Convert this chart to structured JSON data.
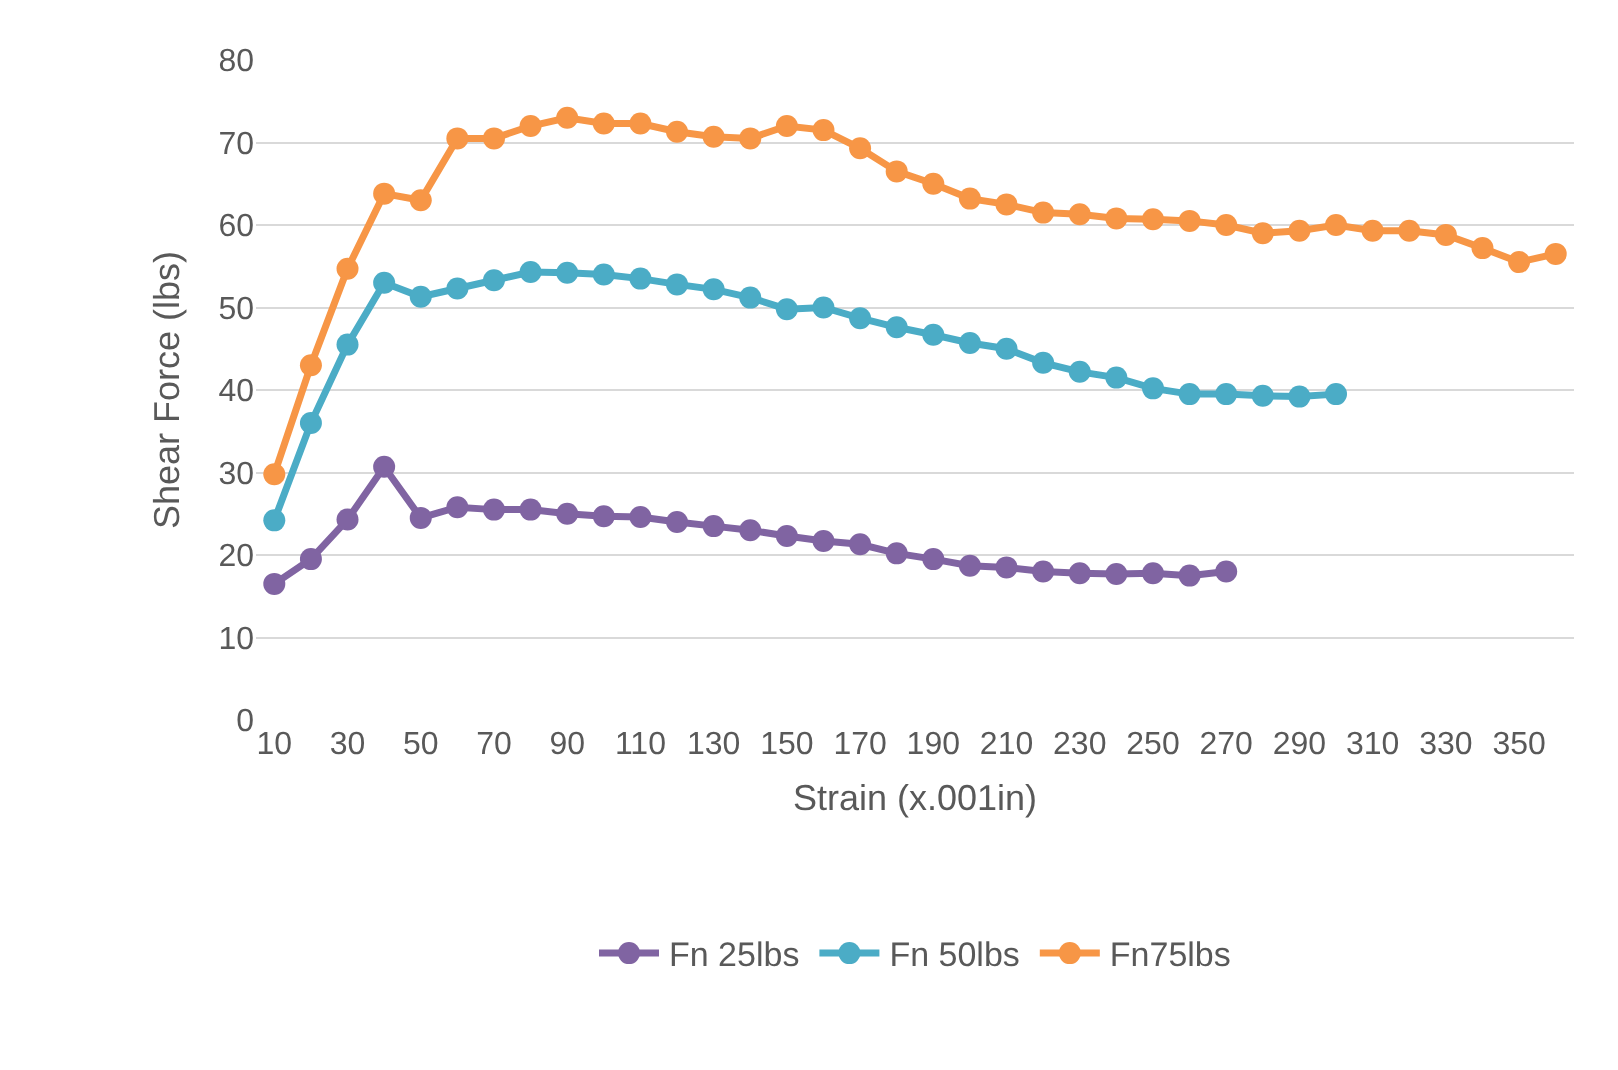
{
  "chart_data": {
    "type": "line",
    "xlabel": "Strain (x.001in)",
    "ylabel": "Shear Force (lbs)",
    "categories": [
      "10",
      null,
      "30",
      null,
      "50",
      null,
      "70",
      null,
      "90",
      null,
      "110",
      null,
      "130",
      null,
      "150",
      null,
      "170",
      null,
      "190",
      null,
      "210",
      null,
      "230",
      null,
      "250",
      null,
      "270",
      null,
      "290",
      null,
      "310",
      null,
      "330",
      null,
      "350",
      null
    ],
    "series": [
      {
        "name": "Fn 25lbs",
        "color": "#8064a2",
        "values": [
          16.5,
          19.5,
          24.3,
          30.7,
          24.5,
          25.8,
          25.5,
          25.5,
          25,
          24.7,
          24.6,
          24,
          23.5,
          23,
          22.3,
          21.7,
          21.3,
          20.2,
          19.5,
          18.7,
          18.5,
          18,
          17.8,
          17.7,
          17.8,
          17.5,
          18,
          null,
          null,
          null,
          null,
          null,
          null,
          null,
          null,
          null
        ]
      },
      {
        "name": "Fn 50lbs",
        "color": "#4bacc6",
        "values": [
          24.2,
          36,
          45.5,
          53,
          51.3,
          52.3,
          53.3,
          54.3,
          54.2,
          54,
          53.5,
          52.8,
          52.2,
          51.2,
          49.8,
          50,
          48.7,
          47.6,
          46.7,
          45.7,
          45,
          43.3,
          42.2,
          41.5,
          40.2,
          39.5,
          39.5,
          39.3,
          39.2,
          39.5,
          null,
          null,
          null,
          null,
          null,
          null
        ]
      },
      {
        "name": "Fn75lbs",
        "color": "#f79646",
        "values": [
          29.8,
          43,
          54.7,
          63.8,
          63,
          70.5,
          70.5,
          72,
          73,
          72.3,
          72.3,
          71.3,
          70.7,
          70.5,
          72,
          71.5,
          69.3,
          66.5,
          65,
          63.2,
          62.5,
          61.5,
          61.3,
          60.8,
          60.7,
          60.5,
          60,
          59,
          59.3,
          60,
          59.3,
          59.3,
          58.8,
          57.2,
          55.5,
          56.5
        ]
      }
    ],
    "ylim": [
      0,
      80
    ],
    "yticks": [
      0,
      10,
      20,
      30,
      40,
      50,
      60,
      70,
      80
    ],
    "grid": "y",
    "legend": "bottom",
    "marker": "circle",
    "line_style": "solid"
  }
}
